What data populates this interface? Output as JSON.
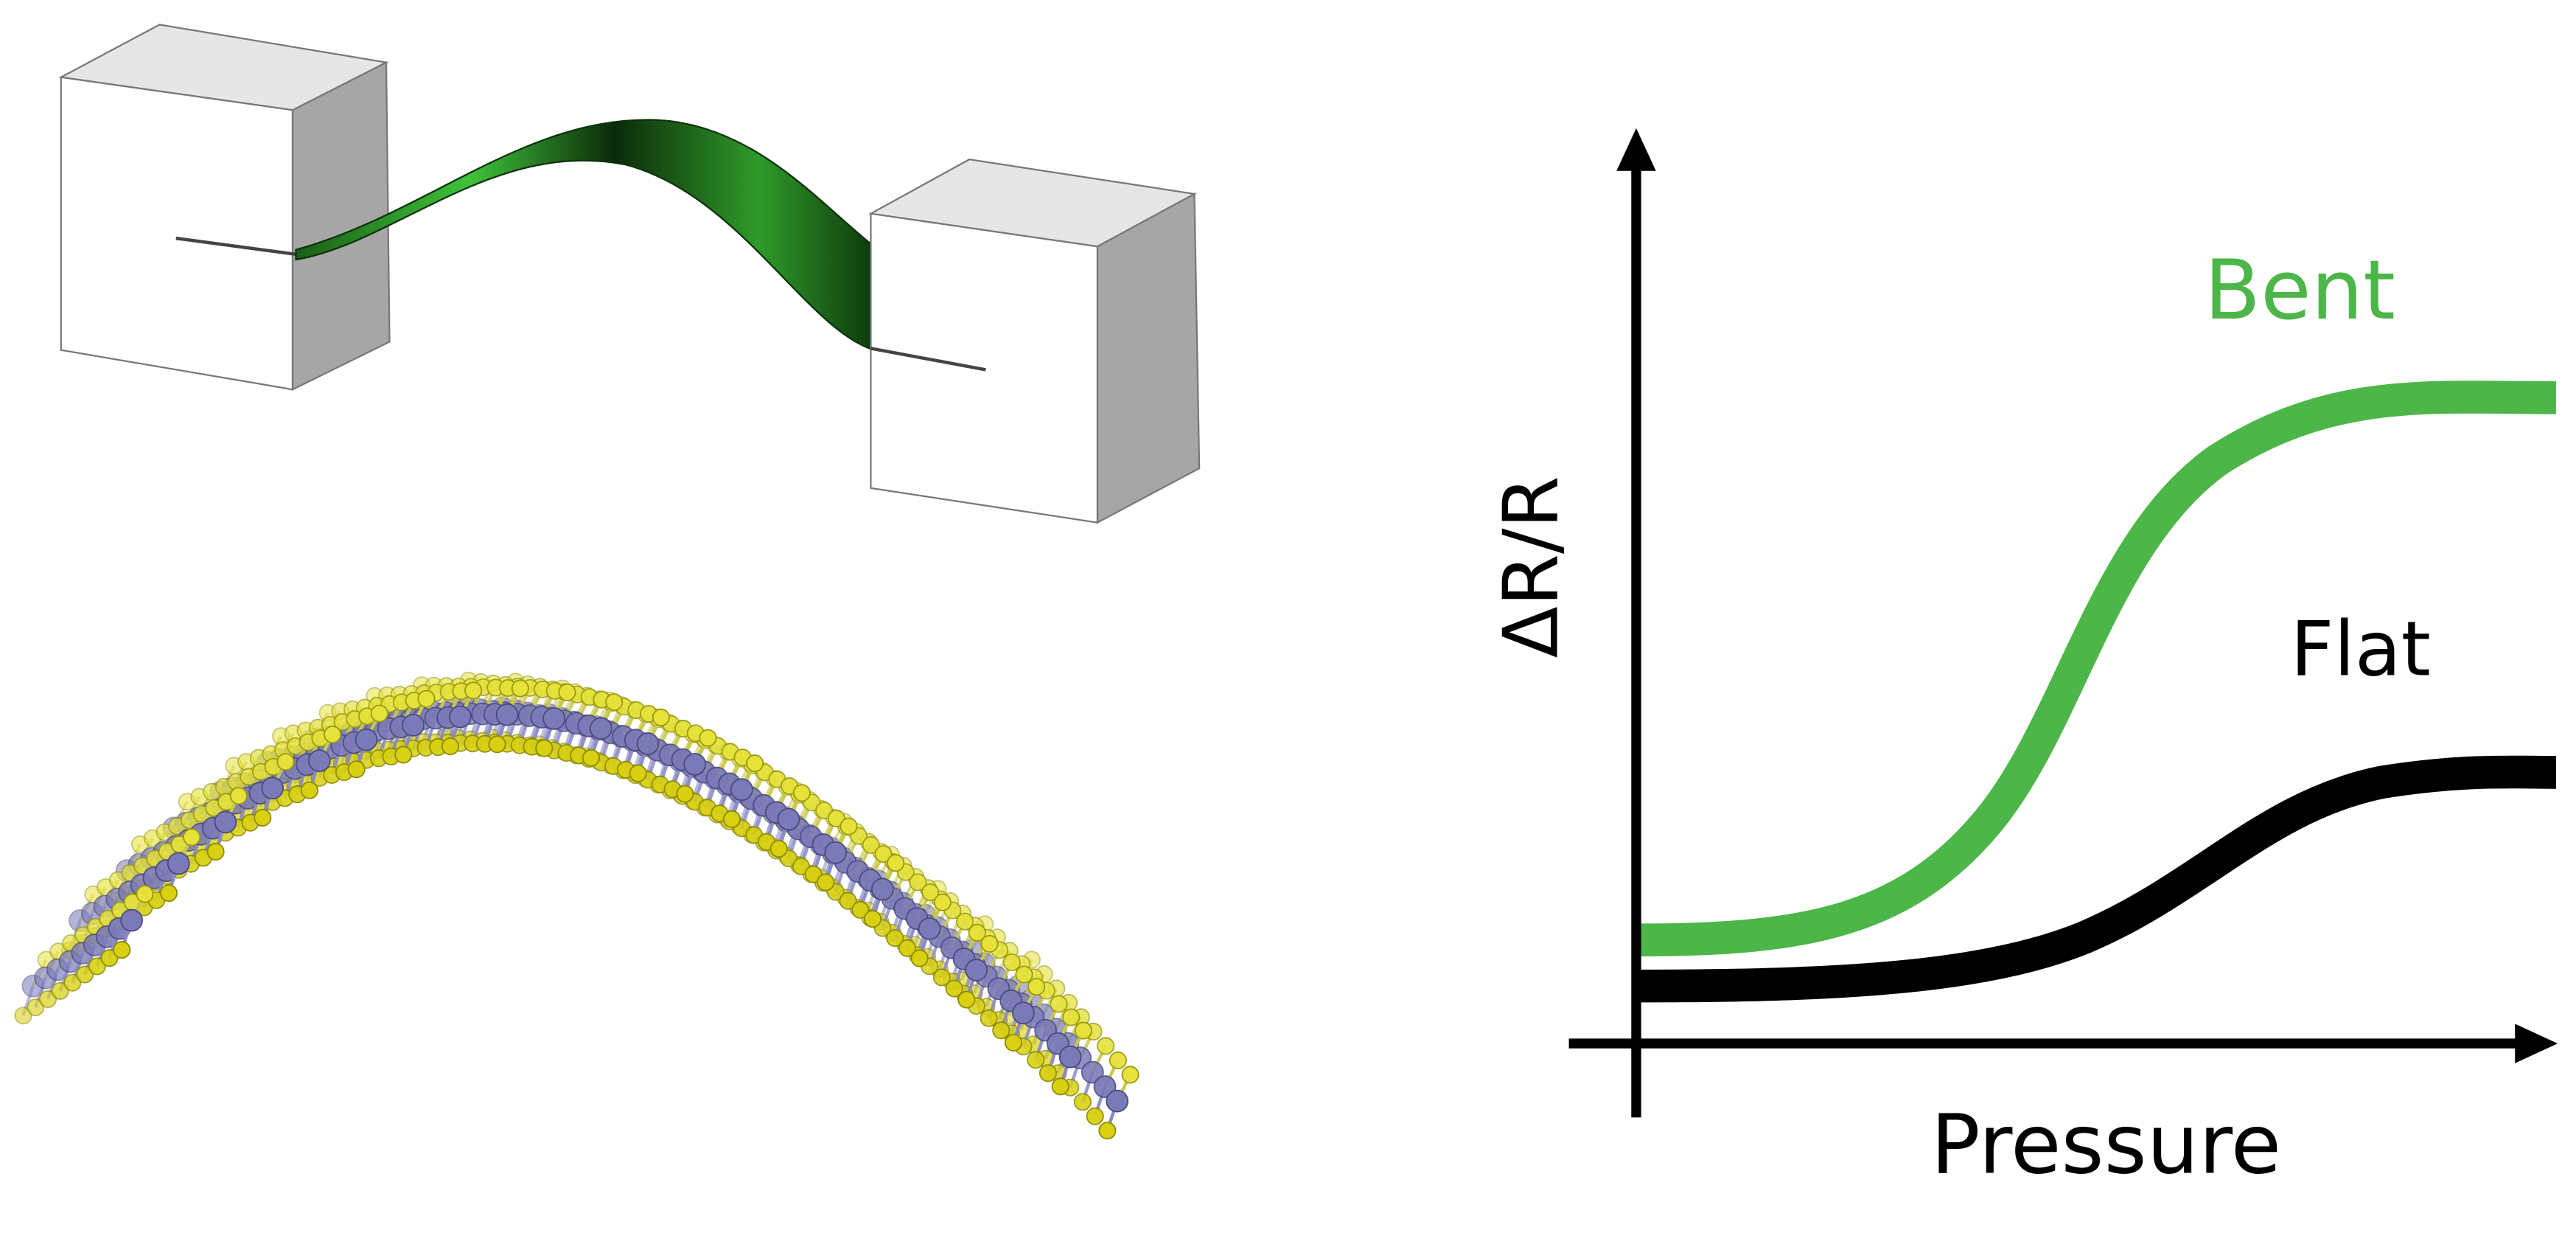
{
  "labels": {
    "y_axis": "ΔR/R",
    "x_axis": "Pressure",
    "bent": "Bent",
    "flat": "Flat"
  }
}
